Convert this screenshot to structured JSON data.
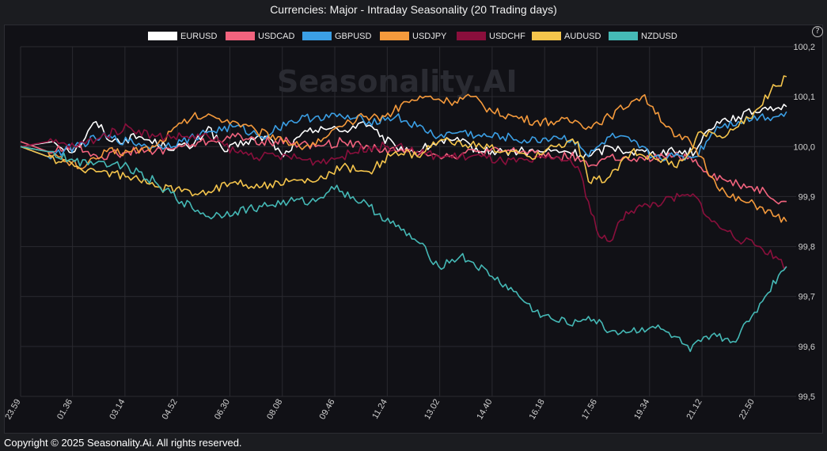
{
  "header": {
    "title": "Currencies: Major - Intraday Seasonality (20 Trading days)"
  },
  "footer": {
    "copyright": "Copyright © 2025 Seasonality.Ai. All rights reserved."
  },
  "help": {
    "icon": "help-icon",
    "label": "?"
  },
  "watermark": {
    "text": "Seasonality.AI"
  },
  "colors": {
    "background": "#1b1c20",
    "plot": "#111116",
    "grid": "#2a2a30"
  },
  "chart_data": {
    "type": "line",
    "title": "Currencies: Major - Intraday Seasonality (20 Trading days)",
    "legend_position": "top",
    "grid": true,
    "x_tick_labels": [
      "23.59",
      "01.36",
      "03.14",
      "04.52",
      "06.30",
      "08.08",
      "09.46",
      "11.24",
      "13.02",
      "14.40",
      "16.18",
      "17.56",
      "19.34",
      "21.12",
      "22.50"
    ],
    "x_tick_minutes": [
      -1,
      96,
      194,
      292,
      390,
      488,
      586,
      684,
      782,
      880,
      978,
      1076,
      1174,
      1272,
      1370
    ],
    "x_range_minutes": [
      -1,
      1439
    ],
    "ylim": [
      99.5,
      100.2
    ],
    "y_ticks": [
      "99,5",
      "99,6",
      "99,7",
      "99,8",
      "99,9",
      "100,0",
      "100,1",
      "100,2"
    ],
    "y_tick_values": [
      99.5,
      99.6,
      99.7,
      99.8,
      99.9,
      100.0,
      100.1,
      100.2
    ],
    "series": [
      {
        "name": "EURUSD",
        "color": "#ffffff",
        "points": [
          [
            -1,
            100.0
          ],
          [
            60,
            100.01
          ],
          [
            100,
            99.99
          ],
          [
            140,
            100.05
          ],
          [
            170,
            100.01
          ],
          [
            220,
            100.02
          ],
          [
            270,
            100.0
          ],
          [
            320,
            100.0
          ],
          [
            350,
            100.04
          ],
          [
            380,
            99.99
          ],
          [
            420,
            100.01
          ],
          [
            460,
            100.02
          ],
          [
            490,
            99.98
          ],
          [
            520,
            100.02
          ],
          [
            560,
            100.04
          ],
          [
            600,
            100.03
          ],
          [
            640,
            100.05
          ],
          [
            670,
            100.02
          ],
          [
            700,
            100.0
          ],
          [
            740,
            99.99
          ],
          [
            780,
            100.01
          ],
          [
            820,
            100.01
          ],
          [
            860,
            99.99
          ],
          [
            900,
            99.99
          ],
          [
            940,
            99.99
          ],
          [
            980,
            99.99
          ],
          [
            1020,
            99.99
          ],
          [
            1060,
            99.98
          ],
          [
            1100,
            100.0
          ],
          [
            1140,
            99.99
          ],
          [
            1180,
            99.99
          ],
          [
            1220,
            99.99
          ],
          [
            1260,
            99.99
          ],
          [
            1280,
            100.03
          ],
          [
            1300,
            100.05
          ],
          [
            1340,
            100.06
          ],
          [
            1370,
            100.07
          ],
          [
            1400,
            100.08
          ],
          [
            1430,
            100.08
          ]
        ]
      },
      {
        "name": "USDCAD",
        "color": "#f2637e",
        "points": [
          [
            -1,
            100.01
          ],
          [
            50,
            99.99
          ],
          [
            100,
            100.0
          ],
          [
            150,
            99.98
          ],
          [
            200,
            99.99
          ],
          [
            250,
            99.99
          ],
          [
            300,
            100.0
          ],
          [
            350,
            100.01
          ],
          [
            400,
            100.02
          ],
          [
            450,
            100.01
          ],
          [
            500,
            100.01
          ],
          [
            550,
            100.0
          ],
          [
            600,
            100.01
          ],
          [
            650,
            100.0
          ],
          [
            700,
            99.99
          ],
          [
            750,
            99.99
          ],
          [
            800,
            99.98
          ],
          [
            850,
            99.99
          ],
          [
            900,
            99.99
          ],
          [
            950,
            99.99
          ],
          [
            1000,
            99.98
          ],
          [
            1040,
            99.98
          ],
          [
            1060,
            99.96
          ],
          [
            1100,
            99.98
          ],
          [
            1150,
            99.97
          ],
          [
            1200,
            99.98
          ],
          [
            1250,
            99.98
          ],
          [
            1280,
            99.95
          ],
          [
            1320,
            99.93
          ],
          [
            1360,
            99.92
          ],
          [
            1390,
            99.91
          ],
          [
            1420,
            99.89
          ],
          [
            1430,
            99.89
          ]
        ]
      },
      {
        "name": "GBPUSD",
        "color": "#3b9fe5",
        "points": [
          [
            -1,
            100.0
          ],
          [
            50,
            99.98
          ],
          [
            100,
            100.0
          ],
          [
            150,
            100.02
          ],
          [
            200,
            100.01
          ],
          [
            250,
            100.0
          ],
          [
            300,
            100.01
          ],
          [
            350,
            100.03
          ],
          [
            400,
            100.04
          ],
          [
            450,
            100.02
          ],
          [
            500,
            100.05
          ],
          [
            550,
            100.06
          ],
          [
            600,
            100.06
          ],
          [
            650,
            100.05
          ],
          [
            700,
            100.06
          ],
          [
            740,
            100.04
          ],
          [
            780,
            100.02
          ],
          [
            820,
            100.03
          ],
          [
            860,
            100.02
          ],
          [
            900,
            100.02
          ],
          [
            950,
            100.01
          ],
          [
            1000,
            100.02
          ],
          [
            1040,
            100.01
          ],
          [
            1060,
            99.98
          ],
          [
            1100,
            100.02
          ],
          [
            1140,
            100.01
          ],
          [
            1180,
            99.98
          ],
          [
            1220,
            99.98
          ],
          [
            1260,
            99.98
          ],
          [
            1300,
            100.04
          ],
          [
            1340,
            100.05
          ],
          [
            1380,
            100.06
          ],
          [
            1410,
            100.06
          ],
          [
            1430,
            100.07
          ]
        ]
      },
      {
        "name": "USDJPY",
        "color": "#f59a3c",
        "points": [
          [
            -1,
            100.0
          ],
          [
            50,
            99.99
          ],
          [
            80,
            99.97
          ],
          [
            120,
            99.96
          ],
          [
            160,
            99.99
          ],
          [
            200,
            99.99
          ],
          [
            250,
            100.0
          ],
          [
            280,
            100.03
          ],
          [
            320,
            100.06
          ],
          [
            360,
            100.06
          ],
          [
            400,
            100.05
          ],
          [
            440,
            100.03
          ],
          [
            480,
            100.02
          ],
          [
            520,
            100.0
          ],
          [
            560,
            100.01
          ],
          [
            600,
            100.04
          ],
          [
            640,
            100.06
          ],
          [
            680,
            100.06
          ],
          [
            720,
            100.09
          ],
          [
            760,
            100.1
          ],
          [
            800,
            100.09
          ],
          [
            840,
            100.1
          ],
          [
            880,
            100.07
          ],
          [
            920,
            100.06
          ],
          [
            960,
            100.05
          ],
          [
            1000,
            100.05
          ],
          [
            1040,
            100.05
          ],
          [
            1060,
            100.04
          ],
          [
            1100,
            100.06
          ],
          [
            1140,
            100.09
          ],
          [
            1160,
            100.1
          ],
          [
            1180,
            100.08
          ],
          [
            1220,
            100.02
          ],
          [
            1250,
            100.01
          ],
          [
            1270,
            99.98
          ],
          [
            1290,
            99.94
          ],
          [
            1320,
            99.9
          ],
          [
            1350,
            99.89
          ],
          [
            1380,
            99.88
          ],
          [
            1410,
            99.86
          ],
          [
            1430,
            99.85
          ]
        ]
      },
      {
        "name": "USDCHF",
        "color": "#8a0f3c",
        "points": [
          [
            -1,
            100.0
          ],
          [
            50,
            100.01
          ],
          [
            100,
            100.0
          ],
          [
            150,
            100.02
          ],
          [
            200,
            100.04
          ],
          [
            250,
            100.02
          ],
          [
            300,
            100.02
          ],
          [
            350,
            100.02
          ],
          [
            400,
            99.99
          ],
          [
            450,
            99.98
          ],
          [
            500,
            99.98
          ],
          [
            550,
            99.97
          ],
          [
            600,
            99.98
          ],
          [
            650,
            100.0
          ],
          [
            700,
            100.0
          ],
          [
            740,
            99.99
          ],
          [
            780,
            99.98
          ],
          [
            820,
            99.98
          ],
          [
            860,
            99.98
          ],
          [
            900,
            99.97
          ],
          [
            950,
            99.97
          ],
          [
            1000,
            99.98
          ],
          [
            1040,
            99.96
          ],
          [
            1060,
            99.89
          ],
          [
            1080,
            99.82
          ],
          [
            1100,
            99.81
          ],
          [
            1130,
            99.87
          ],
          [
            1160,
            99.88
          ],
          [
            1200,
            99.89
          ],
          [
            1230,
            99.9
          ],
          [
            1260,
            99.9
          ],
          [
            1290,
            99.85
          ],
          [
            1320,
            99.83
          ],
          [
            1350,
            99.81
          ],
          [
            1380,
            99.8
          ],
          [
            1410,
            99.78
          ],
          [
            1430,
            99.76
          ]
        ]
      },
      {
        "name": "AUDUSD",
        "color": "#f5c54c",
        "points": [
          [
            -1,
            100.0
          ],
          [
            50,
            99.98
          ],
          [
            100,
            99.96
          ],
          [
            150,
            99.95
          ],
          [
            200,
            99.94
          ],
          [
            250,
            99.92
          ],
          [
            300,
            99.91
          ],
          [
            350,
            99.91
          ],
          [
            400,
            99.93
          ],
          [
            450,
            99.92
          ],
          [
            500,
            99.93
          ],
          [
            550,
            99.93
          ],
          [
            600,
            99.96
          ],
          [
            650,
            99.95
          ],
          [
            700,
            99.99
          ],
          [
            740,
            99.98
          ],
          [
            780,
            100.01
          ],
          [
            820,
            100.01
          ],
          [
            860,
            100.0
          ],
          [
            900,
            99.99
          ],
          [
            950,
            99.98
          ],
          [
            1000,
            100.0
          ],
          [
            1040,
            100.01
          ],
          [
            1060,
            99.93
          ],
          [
            1100,
            99.94
          ],
          [
            1140,
            99.99
          ],
          [
            1180,
            99.98
          ],
          [
            1220,
            99.96
          ],
          [
            1250,
            99.99
          ],
          [
            1270,
            100.03
          ],
          [
            1300,
            100.02
          ],
          [
            1340,
            100.04
          ],
          [
            1370,
            100.07
          ],
          [
            1400,
            100.11
          ],
          [
            1430,
            100.14
          ]
        ]
      },
      {
        "name": "NZDUSD",
        "color": "#45b9b6",
        "points": [
          [
            -1,
            100.0
          ],
          [
            50,
            99.99
          ],
          [
            100,
            99.97
          ],
          [
            150,
            99.97
          ],
          [
            200,
            99.96
          ],
          [
            250,
            99.93
          ],
          [
            300,
            99.89
          ],
          [
            350,
            99.86
          ],
          [
            400,
            99.87
          ],
          [
            450,
            99.88
          ],
          [
            500,
            99.89
          ],
          [
            550,
            99.89
          ],
          [
            580,
            99.92
          ],
          [
            600,
            99.91
          ],
          [
            650,
            99.88
          ],
          [
            700,
            99.84
          ],
          [
            740,
            99.81
          ],
          [
            780,
            99.76
          ],
          [
            820,
            99.78
          ],
          [
            840,
            99.77
          ],
          [
            880,
            99.74
          ],
          [
            920,
            99.71
          ],
          [
            960,
            99.67
          ],
          [
            1000,
            99.65
          ],
          [
            1040,
            99.65
          ],
          [
            1060,
            99.66
          ],
          [
            1100,
            99.63
          ],
          [
            1140,
            99.63
          ],
          [
            1180,
            99.64
          ],
          [
            1220,
            99.62
          ],
          [
            1250,
            99.59
          ],
          [
            1270,
            99.61
          ],
          [
            1300,
            99.62
          ],
          [
            1330,
            99.61
          ],
          [
            1360,
            99.65
          ],
          [
            1390,
            99.7
          ],
          [
            1420,
            99.75
          ],
          [
            1430,
            99.76
          ]
        ]
      }
    ]
  }
}
